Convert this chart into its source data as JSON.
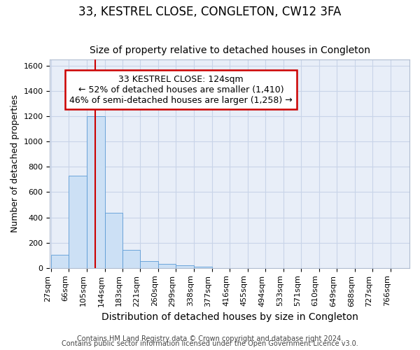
{
  "title": "33, KESTREL CLOSE, CONGLETON, CW12 3FA",
  "subtitle": "Size of property relative to detached houses in Congleton",
  "xlabel": "Distribution of detached houses by size in Congleton",
  "ylabel": "Number of detached properties",
  "footer_line1": "Contains HM Land Registry data © Crown copyright and database right 2024.",
  "footer_line2": "Contains public sector information licensed under the Open Government Licence v3.0.",
  "annotation_line1": "33 KESTREL CLOSE: 124sqm",
  "annotation_line2": "← 52% of detached houses are smaller (1,410)",
  "annotation_line3": "46% of semi-detached houses are larger (1,258) →",
  "bar_edges": [
    27,
    66,
    105,
    144,
    183,
    221,
    260,
    299,
    338,
    377,
    416,
    455,
    494,
    533,
    571,
    610,
    649,
    688,
    727,
    766,
    805
  ],
  "bar_heights": [
    105,
    730,
    1200,
    435,
    145,
    55,
    30,
    20,
    10,
    0,
    0,
    0,
    0,
    0,
    0,
    0,
    0,
    0,
    0,
    0
  ],
  "bar_color": "#cce0f5",
  "bar_edgecolor": "#5b9bd5",
  "vline_x": 124,
  "vline_color": "#cc0000",
  "ylim": [
    0,
    1650
  ],
  "yticks": [
    0,
    200,
    400,
    600,
    800,
    1000,
    1200,
    1400,
    1600
  ],
  "background_color": "#ffffff",
  "plot_bg_color": "#e8eef8",
  "grid_color": "#c8d4e8",
  "title_fontsize": 12,
  "subtitle_fontsize": 10,
  "xlabel_fontsize": 10,
  "ylabel_fontsize": 9,
  "tick_fontsize": 8,
  "annotation_fontsize": 9,
  "footer_fontsize": 7
}
